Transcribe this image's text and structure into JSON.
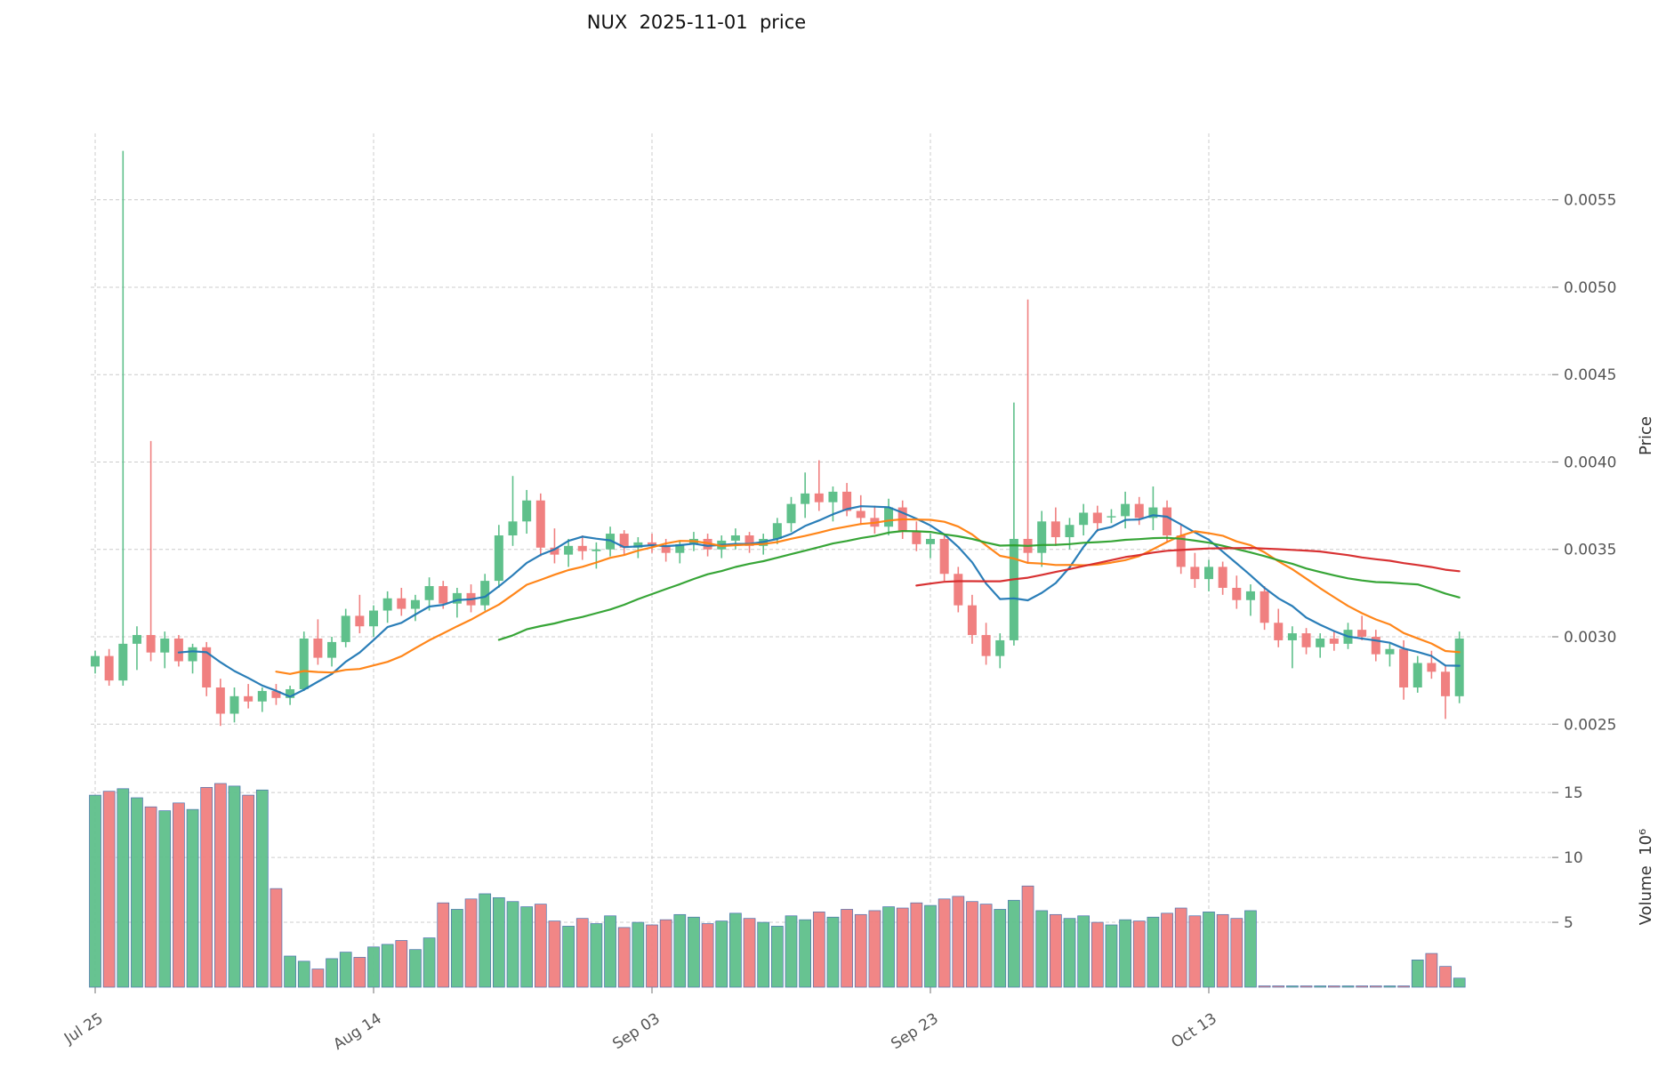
{
  "chart_data": {
    "type": "candlestick",
    "title": "NUX  2025-11-01  price",
    "price_axis": {
      "label": "Price",
      "ticks": [
        0.0025,
        0.003,
        0.0035,
        0.004,
        0.0045,
        0.005,
        0.0055
      ],
      "range": [
        0.00242,
        0.00588
      ]
    },
    "volume_axis": {
      "label": "Volume  10⁶",
      "ticks": [
        5,
        10,
        15
      ],
      "range": [
        0,
        17
      ],
      "unit": 1000000
    },
    "x_axis": {
      "start_date": "2025-07-25",
      "end_date": "2025-10-31",
      "tick_labels": [
        "Jul 25",
        "Aug 14",
        "Sep 03",
        "Sep 23",
        "Oct 13"
      ],
      "tick_indices": [
        0,
        20,
        40,
        60,
        80
      ]
    },
    "price_unit": 0.0001,
    "grid": true,
    "legend": false,
    "indicators": [
      {
        "name": "SMA-7",
        "window": 7,
        "color": "#1f77b4"
      },
      {
        "name": "SMA-14",
        "window": 14,
        "color": "#ff7f0e"
      },
      {
        "name": "SMA-30",
        "window": 30,
        "color": "#2ca02c"
      },
      {
        "name": "SMA-60",
        "window": 60,
        "color": "#d62728"
      }
    ],
    "colors": {
      "up": "#5fc08b",
      "down": "#f08080",
      "grid": "#cccccc",
      "text": "#555555",
      "volume_edge": "#4c72b0"
    },
    "series": {
      "open": [
        28.3,
        28.9,
        27.5,
        29.6,
        30.1,
        29.1,
        29.9,
        28.6,
        29.4,
        27.1,
        25.6,
        26.6,
        26.3,
        26.9,
        26.5,
        27,
        29.9,
        28.8,
        29.7,
        31.2,
        30.6,
        31.5,
        32.2,
        31.6,
        32.1,
        32.9,
        31.9,
        32.5,
        31.8,
        33.2,
        35.8,
        36.6,
        37.8,
        35.1,
        34.7,
        35.2,
        34.9,
        35,
        35.9,
        35.1,
        35.4,
        35.2,
        34.8,
        35.3,
        35.6,
        35,
        35.5,
        35.8,
        35.2,
        35.6,
        36.5,
        37.6,
        38.2,
        37.7,
        38.3,
        37.2,
        36.8,
        36.3,
        37.4,
        36,
        35.3,
        35.6,
        33.6,
        31.8,
        30.1,
        28.9,
        29.8,
        35.6,
        34.8,
        36.6,
        35.7,
        36.4,
        37.1,
        36.9,
        36.9,
        37.6,
        36.8,
        37.4,
        35.8,
        34,
        33.3,
        34,
        32.8,
        32.1,
        32.6,
        30.8,
        29.8,
        30.2,
        29.4,
        29.9,
        29.6,
        30.4,
        30,
        29,
        29.3,
        27.1,
        28.5,
        28,
        26.6
      ],
      "high": [
        29.2,
        29.3,
        57.8,
        30.6,
        41.2,
        30.3,
        30.1,
        29.6,
        29.7,
        27.6,
        27.1,
        27.3,
        27.1,
        27.3,
        27.2,
        30.3,
        31,
        30,
        31.6,
        32.4,
        31.8,
        32.6,
        32.8,
        32.4,
        33.4,
        33.2,
        32.8,
        33,
        33.6,
        36.4,
        39.2,
        38.4,
        38.2,
        36.2,
        35.6,
        35.8,
        35.4,
        36.3,
        36.1,
        35.7,
        35.9,
        35.6,
        35.5,
        36,
        35.9,
        35.8,
        36.2,
        36,
        35.9,
        36.8,
        38,
        39.4,
        40.1,
        38.6,
        38.8,
        38.1,
        37.5,
        37.9,
        37.8,
        36.6,
        35.9,
        35.8,
        34,
        32.4,
        30.8,
        30.2,
        43.4,
        49.3,
        37.2,
        37.4,
        36.8,
        37.6,
        37.5,
        37.3,
        38.3,
        38,
        38.6,
        37.8,
        36.4,
        34.8,
        34.4,
        34.3,
        33.5,
        33,
        32.9,
        31.6,
        30.6,
        30.5,
        30.2,
        30.3,
        30.8,
        31.2,
        30.4,
        29.6,
        29.8,
        28.9,
        29.2,
        28.4,
        30.3
      ],
      "low": [
        27.9,
        27.2,
        27.2,
        28.1,
        28.6,
        28.2,
        28.3,
        27.9,
        26.6,
        24.9,
        25.1,
        25.9,
        25.7,
        26.1,
        26.1,
        26.9,
        28.4,
        28.3,
        29.4,
        30.2,
        30,
        30.8,
        31.2,
        30.9,
        31.5,
        31.6,
        31.1,
        31.4,
        31.5,
        32.8,
        35.2,
        35.9,
        34.6,
        34.2,
        34,
        34.4,
        33.9,
        34.6,
        34.7,
        34.5,
        34.8,
        34.3,
        34.2,
        34.9,
        34.6,
        34.5,
        35,
        34.8,
        34.7,
        35.3,
        36,
        36.8,
        37.2,
        36.6,
        36.9,
        36.4,
        35.9,
        35.8,
        35.6,
        34.9,
        34.5,
        33.2,
        31.4,
        29.6,
        28.4,
        28.2,
        29.5,
        34.2,
        34,
        35.2,
        35,
        35.8,
        36,
        36.5,
        36.2,
        36.4,
        36.1,
        35.4,
        33.6,
        32.8,
        32.6,
        32.4,
        31.6,
        31.2,
        30.4,
        29.4,
        28.2,
        29,
        28.8,
        29.2,
        29.3,
        29.8,
        28.6,
        28.3,
        26.4,
        26.8,
        27.6,
        25.3,
        26.2
      ],
      "close": [
        28.9,
        27.5,
        29.6,
        30.1,
        29.1,
        29.9,
        28.6,
        29.4,
        27.1,
        25.6,
        26.6,
        26.3,
        26.9,
        26.5,
        27,
        29.9,
        28.8,
        29.7,
        31.2,
        30.6,
        31.5,
        32.2,
        31.6,
        32.1,
        32.9,
        31.9,
        32.5,
        31.8,
        33.2,
        35.8,
        36.6,
        37.8,
        35.1,
        34.7,
        35.2,
        34.9,
        35,
        35.9,
        35.1,
        35.4,
        35.2,
        34.8,
        35.3,
        35.6,
        35,
        35.5,
        35.8,
        35.2,
        35.6,
        36.5,
        37.6,
        38.2,
        37.7,
        38.3,
        37.2,
        36.8,
        36.3,
        37.4,
        36,
        35.3,
        35.6,
        33.6,
        31.8,
        30.1,
        28.9,
        29.8,
        35.6,
        34.8,
        36.6,
        35.7,
        36.4,
        37.1,
        36.5,
        36.9,
        37.6,
        36.8,
        37.4,
        35.8,
        34,
        33.3,
        34,
        32.8,
        32.1,
        32.6,
        30.8,
        29.8,
        30.2,
        29.4,
        29.9,
        29.6,
        30.4,
        30,
        29,
        29.3,
        27.1,
        28.5,
        28,
        26.6,
        29.9
      ],
      "volume_millions": [
        14.8,
        15.1,
        15.3,
        14.6,
        13.9,
        13.6,
        14.2,
        13.7,
        15.4,
        15.7,
        15.5,
        14.8,
        15.2,
        7.6,
        2.4,
        2,
        1.4,
        2.2,
        2.7,
        2.3,
        3.1,
        3.3,
        3.6,
        2.9,
        3.8,
        6.5,
        6,
        6.8,
        7.2,
        6.9,
        6.6,
        6.2,
        6.4,
        5.1,
        4.7,
        5.3,
        4.9,
        5.5,
        4.6,
        5,
        4.8,
        5.2,
        5.6,
        5.4,
        4.9,
        5.1,
        5.7,
        5.3,
        5,
        4.7,
        5.5,
        5.2,
        5.8,
        5.4,
        6,
        5.6,
        5.9,
        6.2,
        6.1,
        6.5,
        6.3,
        6.8,
        7,
        6.6,
        6.4,
        6,
        6.7,
        7.8,
        5.9,
        5.6,
        5.3,
        5.5,
        5,
        4.8,
        5.2,
        5.1,
        5.4,
        5.7,
        6.1,
        5.5,
        5.8,
        5.6,
        5.3,
        5.9,
        0.1,
        0.1,
        0.1,
        0.1,
        0.1,
        0.1,
        0.1,
        0.1,
        0.1,
        0.1,
        0.1,
        2.1,
        2.6,
        1.6,
        0.7
      ]
    }
  }
}
